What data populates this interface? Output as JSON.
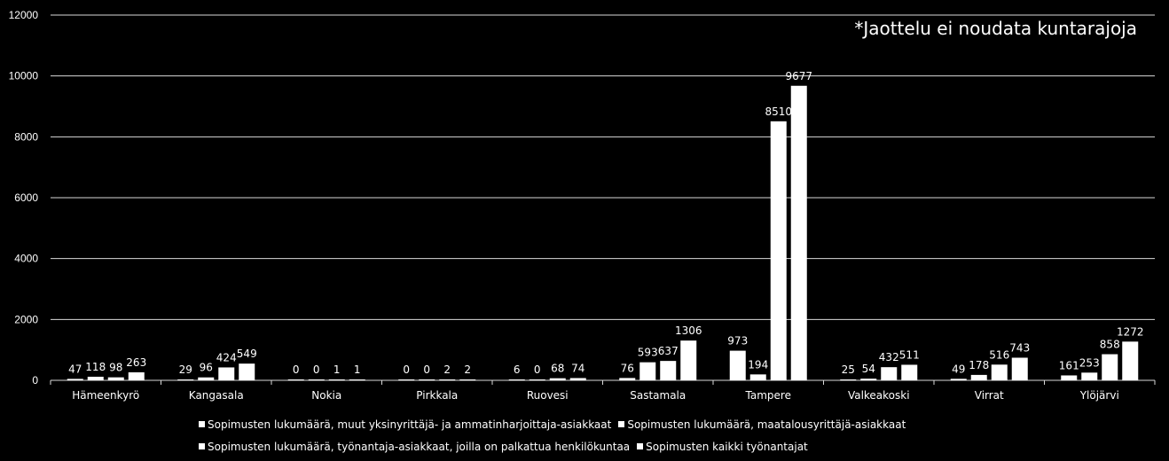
{
  "note": "*Jaottelu ei noudata kuntarajoja",
  "chart_data": {
    "type": "bar",
    "title": "",
    "xlabel": "",
    "ylabel": "",
    "ylim": [
      0,
      12000
    ],
    "yticks": [
      0,
      2000,
      4000,
      6000,
      8000,
      10000,
      12000
    ],
    "grid": true,
    "legend_position": "bottom",
    "categories": [
      "Hämeenkyrö",
      "Kangasala",
      "Nokia",
      "Pirkkala",
      "Ruovesi",
      "Sastamala",
      "Tampere",
      "Valkeakoski",
      "Virrat",
      "Ylöjärvi"
    ],
    "series": [
      {
        "name": "Sopimusten lukumäärä, muut yksinyrittäjä- ja ammatinharjoittaja-asiakkaat",
        "values": [
          47,
          29,
          0,
          0,
          6,
          76,
          973,
          25,
          49,
          161
        ]
      },
      {
        "name": "Sopimusten lukumäärä, maatalousyrittäjä-asiakkaat",
        "values": [
          118,
          96,
          0,
          0,
          0,
          593,
          194,
          54,
          178,
          253
        ]
      },
      {
        "name": "Sopimusten lukumäärä, työnantaja-asiakkaat, joilla on palkattua henkilökuntaa",
        "values": [
          98,
          424,
          1,
          2,
          68,
          637,
          8510,
          432,
          516,
          858
        ]
      },
      {
        "name": "Sopimusten kaikki työnantajat",
        "values": [
          263,
          549,
          1,
          2,
          74,
          1306,
          9677,
          511,
          743,
          1272
        ]
      }
    ],
    "colors": {
      "background": "#000000",
      "bars": "#ffffff",
      "grid": "#d9d9d9",
      "text": "#ffffff"
    }
  }
}
